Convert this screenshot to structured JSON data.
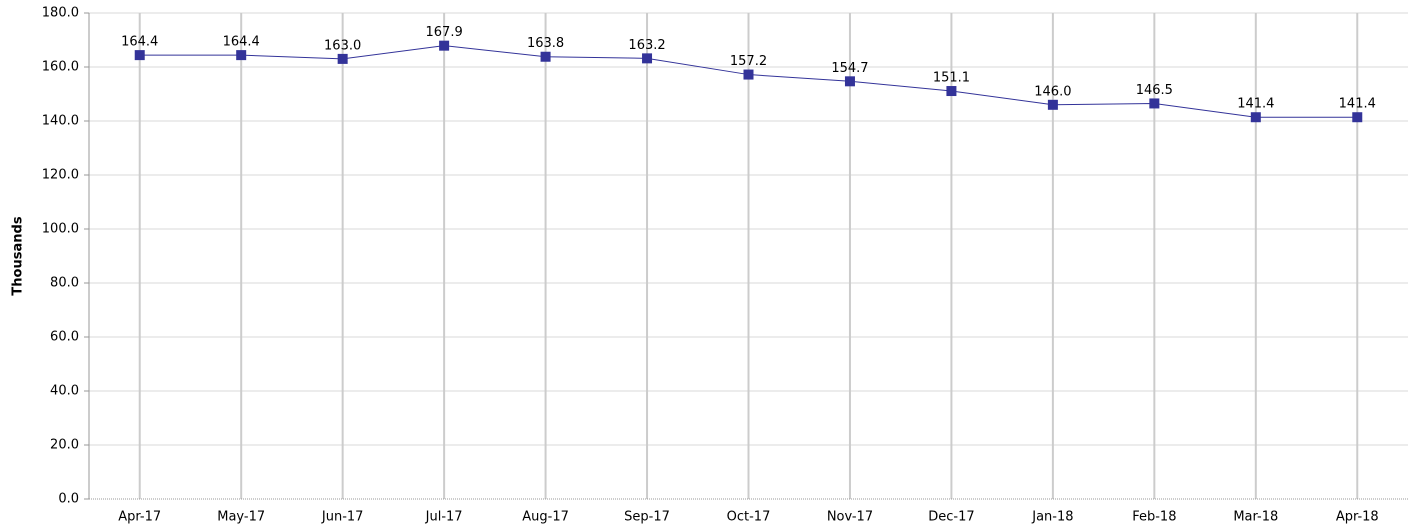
{
  "chart_data": {
    "type": "line",
    "y_label": "Thousands",
    "categories": [
      "Apr-17",
      "May-17",
      "Jun-17",
      "Jul-17",
      "Aug-17",
      "Sep-17",
      "Oct-17",
      "Nov-17",
      "Dec-17",
      "Jan-18",
      "Feb-18",
      "Mar-18",
      "Apr-18"
    ],
    "values": [
      164.4,
      164.4,
      163.0,
      167.9,
      163.8,
      163.2,
      157.2,
      154.7,
      151.1,
      146.0,
      146.5,
      141.4,
      141.4
    ],
    "value_labels": [
      "164.4",
      "164.4",
      "163.0",
      "167.9",
      "163.8",
      "163.2",
      "157.2",
      "154.7",
      "151.1",
      "146.0",
      "146.5",
      "141.4",
      "141.4"
    ],
    "color": "#333399",
    "ylim": [
      0,
      180
    ],
    "yticks": [
      {
        "value": 0,
        "label": "0.0"
      },
      {
        "value": 20,
        "label": "20.0"
      },
      {
        "value": 40,
        "label": "40.0"
      },
      {
        "value": 60,
        "label": "60.0"
      },
      {
        "value": 80,
        "label": "80.0"
      },
      {
        "value": 100,
        "label": "100.0"
      },
      {
        "value": 120,
        "label": "120.0"
      },
      {
        "value": 140,
        "label": "140.0"
      },
      {
        "value": 160,
        "label": "160.0"
      },
      {
        "value": 180,
        "label": "180.0"
      }
    ],
    "grid": true
  }
}
